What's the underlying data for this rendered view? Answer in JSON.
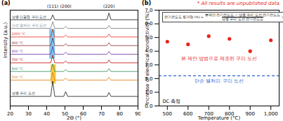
{
  "chart_data": [
    {
      "type": "line",
      "panel": "(a)",
      "xlabel": "2Θ (°)",
      "ylabel": "Intensity (a.u.)",
      "tick_labels": "x",
      "xlim": [
        20,
        90
      ],
      "xticks": [
        20,
        30,
        40,
        50,
        60,
        70,
        80,
        90
      ],
      "ylim": [
        0,
        10
      ],
      "x": [
        20,
        42.2,
        43.3,
        44.4,
        49.3,
        50.4,
        51.5,
        73.0,
        74.1,
        75.2,
        90
      ],
      "series": [
        {
          "name": "상용 단결정 구리 도선",
          "color": "#111111",
          "values": [
            9.0,
            9.0,
            9.5,
            9.0,
            9.0,
            9.0,
            9.0,
            9.0,
            9.7,
            9.0,
            9.0
          ]
        },
        {
          "name": "단순 열처리 구리 도선",
          "color": "#777777",
          "values": [
            8.1,
            8.1,
            8.8,
            8.1,
            8.1,
            8.3,
            8.1,
            8.1,
            8.4,
            8.1,
            8.1
          ]
        },
        {
          "name": "1000 °C",
          "color": "#e8261c",
          "values": [
            7.2,
            7.2,
            8.0,
            7.2,
            7.2,
            7.4,
            7.2,
            7.2,
            7.5,
            7.2,
            7.2
          ]
        },
        {
          "name": "900 °C",
          "color": "#8b2a2a",
          "values": [
            6.3,
            6.3,
            7.1,
            6.3,
            6.3,
            6.5,
            6.3,
            6.3,
            6.6,
            6.3,
            6.3
          ]
        },
        {
          "name": "800 °C",
          "color": "#7030a0",
          "values": [
            5.4,
            5.4,
            6.2,
            5.4,
            5.4,
            5.6,
            5.4,
            5.4,
            5.7,
            5.4,
            5.4
          ]
        },
        {
          "name": "700 °C",
          "color": "#c00000",
          "values": [
            4.5,
            4.5,
            5.3,
            4.5,
            4.5,
            4.7,
            4.5,
            4.5,
            4.8,
            4.5,
            4.5
          ]
        },
        {
          "name": "600 °C",
          "color": "#2e8b57",
          "values": [
            3.6,
            3.6,
            4.4,
            3.6,
            3.6,
            3.8,
            3.6,
            3.6,
            3.9,
            3.6,
            3.6
          ]
        },
        {
          "name": "500 °C",
          "color": "#e07b00",
          "values": [
            2.7,
            2.7,
            3.5,
            2.7,
            2.7,
            2.9,
            2.7,
            2.7,
            3.0,
            2.7,
            2.7
          ]
        },
        {
          "name": "상용 구리 도선",
          "color": "#111111",
          "values": [
            1.0,
            1.0,
            2.6,
            1.0,
            1.0,
            1.5,
            1.0,
            1.0,
            1.4,
            1.0,
            1.0
          ]
        }
      ],
      "annotations": [
        {
          "text": "(111)",
          "x": 43.3
        },
        {
          "text": "(200)",
          "x": 50.4
        },
        {
          "text": "(220)",
          "x": 74.1
        }
      ],
      "highlights": [
        {
          "x": [
            41.6,
            44.6
          ],
          "y": [
            4.9,
            8.0
          ],
          "color": "#4fb3e8"
        },
        {
          "x": [
            42.4,
            45.2
          ],
          "y": [
            2.3,
            4.3
          ],
          "color": "#f5b800"
        }
      ]
    },
    {
      "type": "scatter",
      "panel": "(b)",
      "note": "* All results are unpublished data.",
      "xlabel": "Temperature (°C)",
      "ylabel": "Increase of electrical conductivity (%)",
      "xlim": [
        460,
        1040
      ],
      "xticks": [
        500,
        600,
        700,
        800,
        900,
        1000
      ],
      "ylim": [
        0,
        7
      ],
      "yticks": [
        0,
        1,
        2,
        3,
        4,
        5,
        6,
        7
      ],
      "x": [
        500,
        600,
        700,
        800,
        900,
        1000
      ],
      "series": [
        {
          "name": "본 제안 방법으로 제조된 구리 도선",
          "color": "#e8261c",
          "marker": "circle",
          "values": [
            4.7,
            4.5,
            5.1,
            4.9,
            4.0,
            4.8
          ]
        }
      ],
      "reference": {
        "value": 2.2,
        "label": "단순 열처리 구리 도선",
        "color": "#2f5fd0",
        "line_style": "dashed"
      },
      "annotations": [
        {
          "text": "DC 측정"
        }
      ],
      "formula": {
        "lhs": "전기전도도 증가량 (%) =",
        "numerator": "본제안 전기전도도 − 상용 구리 도선 전기전도도",
        "denominator": "상용 구리 도선 전기전도도",
        "rhs": "× 100"
      }
    }
  ]
}
